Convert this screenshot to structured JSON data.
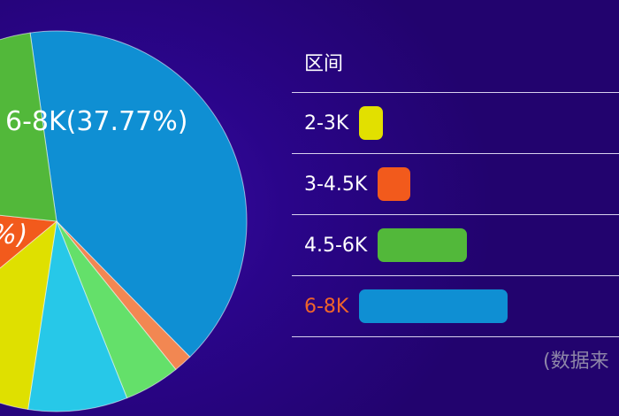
{
  "chart_data": {
    "type": "pie",
    "slices": [
      {
        "label": "6-8K",
        "percent": 37.77,
        "color": "#0f8fd3"
      },
      {
        "label": "",
        "percent": 1.5,
        "color": "#f28752"
      },
      {
        "label": "",
        "percent": 4.5,
        "color": "#64e06a"
      },
      {
        "label": "",
        "percent": 8.0,
        "color": "#27c8e8"
      },
      {
        "label": "",
        "percent": 11.0,
        "color": "#dfe000"
      },
      {
        "label": "",
        "percent": 12.0,
        "color": "#f25a1c"
      },
      {
        "label": "",
        "percent": 20.0,
        "color": "#52b83a"
      }
    ],
    "slice_label_text": "6-8K(37.77%)",
    "partial_label_text": "%)"
  },
  "legend": {
    "title": "区间",
    "items": [
      {
        "label": "2-3K",
        "color": "#e2e000",
        "label_color": "#ffffff",
        "bar_ratio": 0.16
      },
      {
        "label": "3-4.5K",
        "color": "#f25a1c",
        "label_color": "#ffffff",
        "bar_ratio": 0.22
      },
      {
        "label": "4.5-6K",
        "color": "#52b83a",
        "label_color": "#ffffff",
        "bar_ratio": 0.6
      },
      {
        "label": "6-8K",
        "color": "#0f8fd3",
        "label_color": "#f0642a",
        "bar_ratio": 1.0
      }
    ]
  },
  "source_note": "(数据来"
}
